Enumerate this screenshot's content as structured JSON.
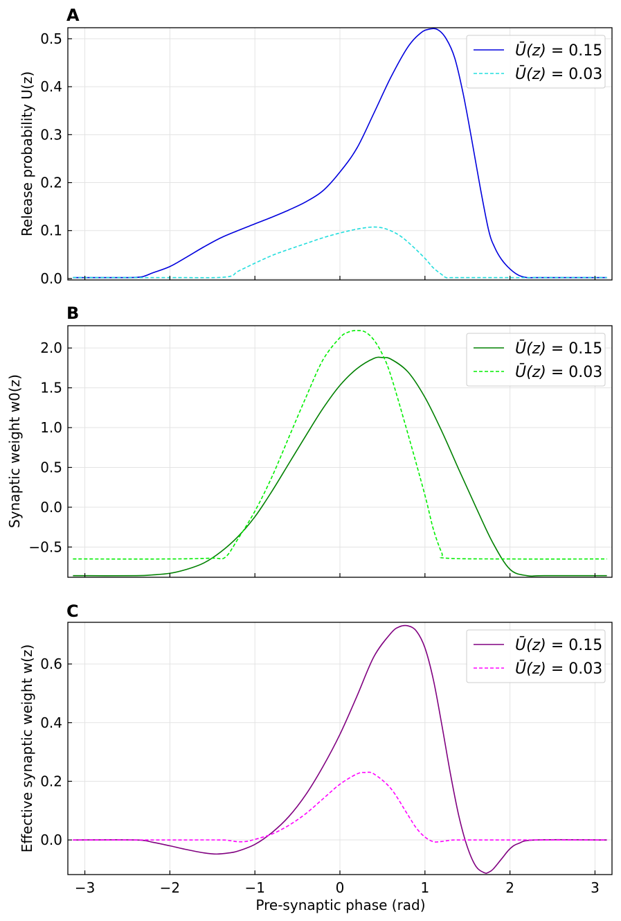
{
  "figure": {
    "xlabel": "Pre-synaptic phase (rad)",
    "xlim": [
      -3.2,
      3.2
    ],
    "xticks": [
      -3,
      -2,
      -1,
      0,
      1,
      2,
      3
    ],
    "xtick_labels": [
      "−3",
      "−2",
      "−1",
      "0",
      "1",
      "2",
      "3"
    ]
  },
  "legend_labels": {
    "solid": {
      "symbol": "Ū(z)",
      "rest": " = 0.15"
    },
    "dashed": {
      "symbol": "Ū(z)",
      "rest": " = 0.03"
    }
  },
  "chart_data": [
    {
      "type": "line",
      "panel": "A",
      "ylabel": "Release probability U(z)",
      "ylim": [
        -0.003,
        0.523
      ],
      "yticks": [
        0.0,
        0.1,
        0.2,
        0.3,
        0.4,
        0.5
      ],
      "ytick_labels": [
        "0.0",
        "0.1",
        "0.2",
        "0.3",
        "0.4",
        "0.5"
      ],
      "legend_position": "top-right",
      "series": [
        {
          "name": "Ū(z) = 0.15",
          "color": "#0000dd",
          "style": "solid",
          "x": [
            -3.14,
            -2.6,
            -2.35,
            -2.2,
            -2.0,
            -1.8,
            -1.6,
            -1.4,
            -1.2,
            -1.0,
            -0.8,
            -0.6,
            -0.4,
            -0.2,
            0.0,
            0.2,
            0.4,
            0.6,
            0.8,
            0.95,
            1.05,
            1.15,
            1.25,
            1.35,
            1.45,
            1.55,
            1.65,
            1.75,
            1.82,
            1.9,
            2.0,
            2.1,
            2.2,
            2.3,
            2.6,
            3.14
          ],
          "y": [
            0.002,
            0.002,
            0.003,
            0.012,
            0.025,
            0.045,
            0.066,
            0.085,
            0.1,
            0.114,
            0.128,
            0.143,
            0.16,
            0.183,
            0.222,
            0.272,
            0.345,
            0.42,
            0.483,
            0.512,
            0.52,
            0.519,
            0.5,
            0.46,
            0.385,
            0.29,
            0.19,
            0.1,
            0.065,
            0.04,
            0.02,
            0.007,
            0.002,
            0.002,
            0.002,
            0.002
          ]
        },
        {
          "name": "Ū(z) = 0.03",
          "color": "#22dddd",
          "style": "dashed",
          "x": [
            -3.14,
            -2.0,
            -1.35,
            -1.2,
            -1.0,
            -0.8,
            -0.6,
            -0.4,
            -0.2,
            0.0,
            0.2,
            0.35,
            0.45,
            0.55,
            0.7,
            0.85,
            1.0,
            1.1,
            1.2,
            1.25,
            1.35,
            2.0,
            3.14
          ],
          "y": [
            0.002,
            0.002,
            0.003,
            0.015,
            0.032,
            0.048,
            0.061,
            0.073,
            0.085,
            0.095,
            0.103,
            0.107,
            0.107,
            0.103,
            0.09,
            0.068,
            0.042,
            0.022,
            0.008,
            0.002,
            0.002,
            0.002,
            0.002
          ]
        }
      ]
    },
    {
      "type": "line",
      "panel": "B",
      "ylabel": "Synaptic weight w0(z)",
      "ylim": [
        -0.88,
        2.28
      ],
      "yticks": [
        -0.5,
        0.0,
        0.5,
        1.0,
        1.5,
        2.0
      ],
      "ytick_labels": [
        "−0.5",
        "0.0",
        "0.5",
        "1.0",
        "1.5",
        "2.0"
      ],
      "legend_position": "top-right",
      "series": [
        {
          "name": "Ū(z) = 0.15",
          "color": "#008000",
          "style": "solid",
          "x": [
            -3.14,
            -2.4,
            -2.2,
            -2.0,
            -1.8,
            -1.6,
            -1.4,
            -1.2,
            -1.0,
            -0.8,
            -0.6,
            -0.4,
            -0.2,
            0.0,
            0.2,
            0.4,
            0.5,
            0.6,
            0.8,
            1.0,
            1.2,
            1.4,
            1.6,
            1.8,
            2.0,
            2.2,
            2.4,
            3.14
          ],
          "y": [
            -0.86,
            -0.86,
            -0.85,
            -0.83,
            -0.78,
            -0.7,
            -0.56,
            -0.37,
            -0.12,
            0.2,
            0.55,
            0.9,
            1.24,
            1.53,
            1.74,
            1.87,
            1.88,
            1.86,
            1.7,
            1.38,
            0.95,
            0.47,
            0.0,
            -0.45,
            -0.78,
            -0.86,
            -0.86,
            -0.86
          ]
        },
        {
          "name": "Ū(z) = 0.03",
          "color": "#00ee00",
          "style": "dashed",
          "x": [
            -3.14,
            -2.0,
            -1.5,
            -1.35,
            -1.2,
            -1.0,
            -0.8,
            -0.6,
            -0.4,
            -0.2,
            0.0,
            0.1,
            0.2,
            0.3,
            0.4,
            0.5,
            0.6,
            0.8,
            1.0,
            1.1,
            1.2,
            1.25,
            2.0,
            3.14
          ],
          "y": [
            -0.65,
            -0.65,
            -0.64,
            -0.63,
            -0.4,
            -0.05,
            0.38,
            0.88,
            1.38,
            1.85,
            2.13,
            2.2,
            2.22,
            2.2,
            2.1,
            1.92,
            1.65,
            0.92,
            0.15,
            -0.28,
            -0.58,
            -0.64,
            -0.65,
            -0.65
          ]
        }
      ]
    },
    {
      "type": "line",
      "panel": "C",
      "ylabel": "Effective synaptic weight w(z)",
      "ylim": [
        -0.118,
        0.742
      ],
      "yticks": [
        0.0,
        0.2,
        0.4,
        0.6
      ],
      "ytick_labels": [
        "0.0",
        "0.2",
        "0.4",
        "0.6"
      ],
      "legend_position": "top-right",
      "series": [
        {
          "name": "Ū(z) = 0.15",
          "color": "#800080",
          "style": "solid",
          "x": [
            -3.14,
            -2.4,
            -2.2,
            -2.0,
            -1.8,
            -1.6,
            -1.45,
            -1.3,
            -1.2,
            -1.0,
            -0.8,
            -0.6,
            -0.4,
            -0.2,
            0.0,
            0.2,
            0.4,
            0.6,
            0.7,
            0.8,
            0.9,
            1.0,
            1.1,
            1.2,
            1.3,
            1.4,
            1.5,
            1.6,
            1.7,
            1.75,
            1.8,
            1.9,
            2.0,
            2.1,
            2.3,
            3.14
          ],
          "y": [
            0.0,
            0.0,
            -0.008,
            -0.02,
            -0.033,
            -0.044,
            -0.048,
            -0.044,
            -0.038,
            -0.015,
            0.025,
            0.08,
            0.155,
            0.25,
            0.36,
            0.49,
            0.625,
            0.705,
            0.727,
            0.73,
            0.712,
            0.655,
            0.545,
            0.39,
            0.225,
            0.08,
            -0.025,
            -0.09,
            -0.112,
            -0.11,
            -0.1,
            -0.065,
            -0.03,
            -0.012,
            0.0,
            0.0
          ]
        },
        {
          "name": "Ū(z) = 0.03",
          "color": "#ff00ff",
          "style": "dashed",
          "x": [
            -3.14,
            -2.0,
            -1.4,
            -1.3,
            -1.2,
            -1.1,
            -1.0,
            -0.8,
            -0.6,
            -0.4,
            -0.2,
            0.0,
            0.2,
            0.3,
            0.4,
            0.6,
            0.8,
            0.9,
            1.0,
            1.1,
            1.2,
            1.3,
            1.4,
            2.0,
            3.14
          ],
          "y": [
            0.0,
            0.0,
            0.0,
            -0.002,
            -0.006,
            -0.005,
            0.002,
            0.02,
            0.05,
            0.09,
            0.14,
            0.19,
            0.225,
            0.23,
            0.225,
            0.175,
            0.085,
            0.04,
            0.01,
            -0.006,
            -0.005,
            -0.001,
            0.0,
            0.0,
            0.0
          ]
        }
      ]
    }
  ]
}
